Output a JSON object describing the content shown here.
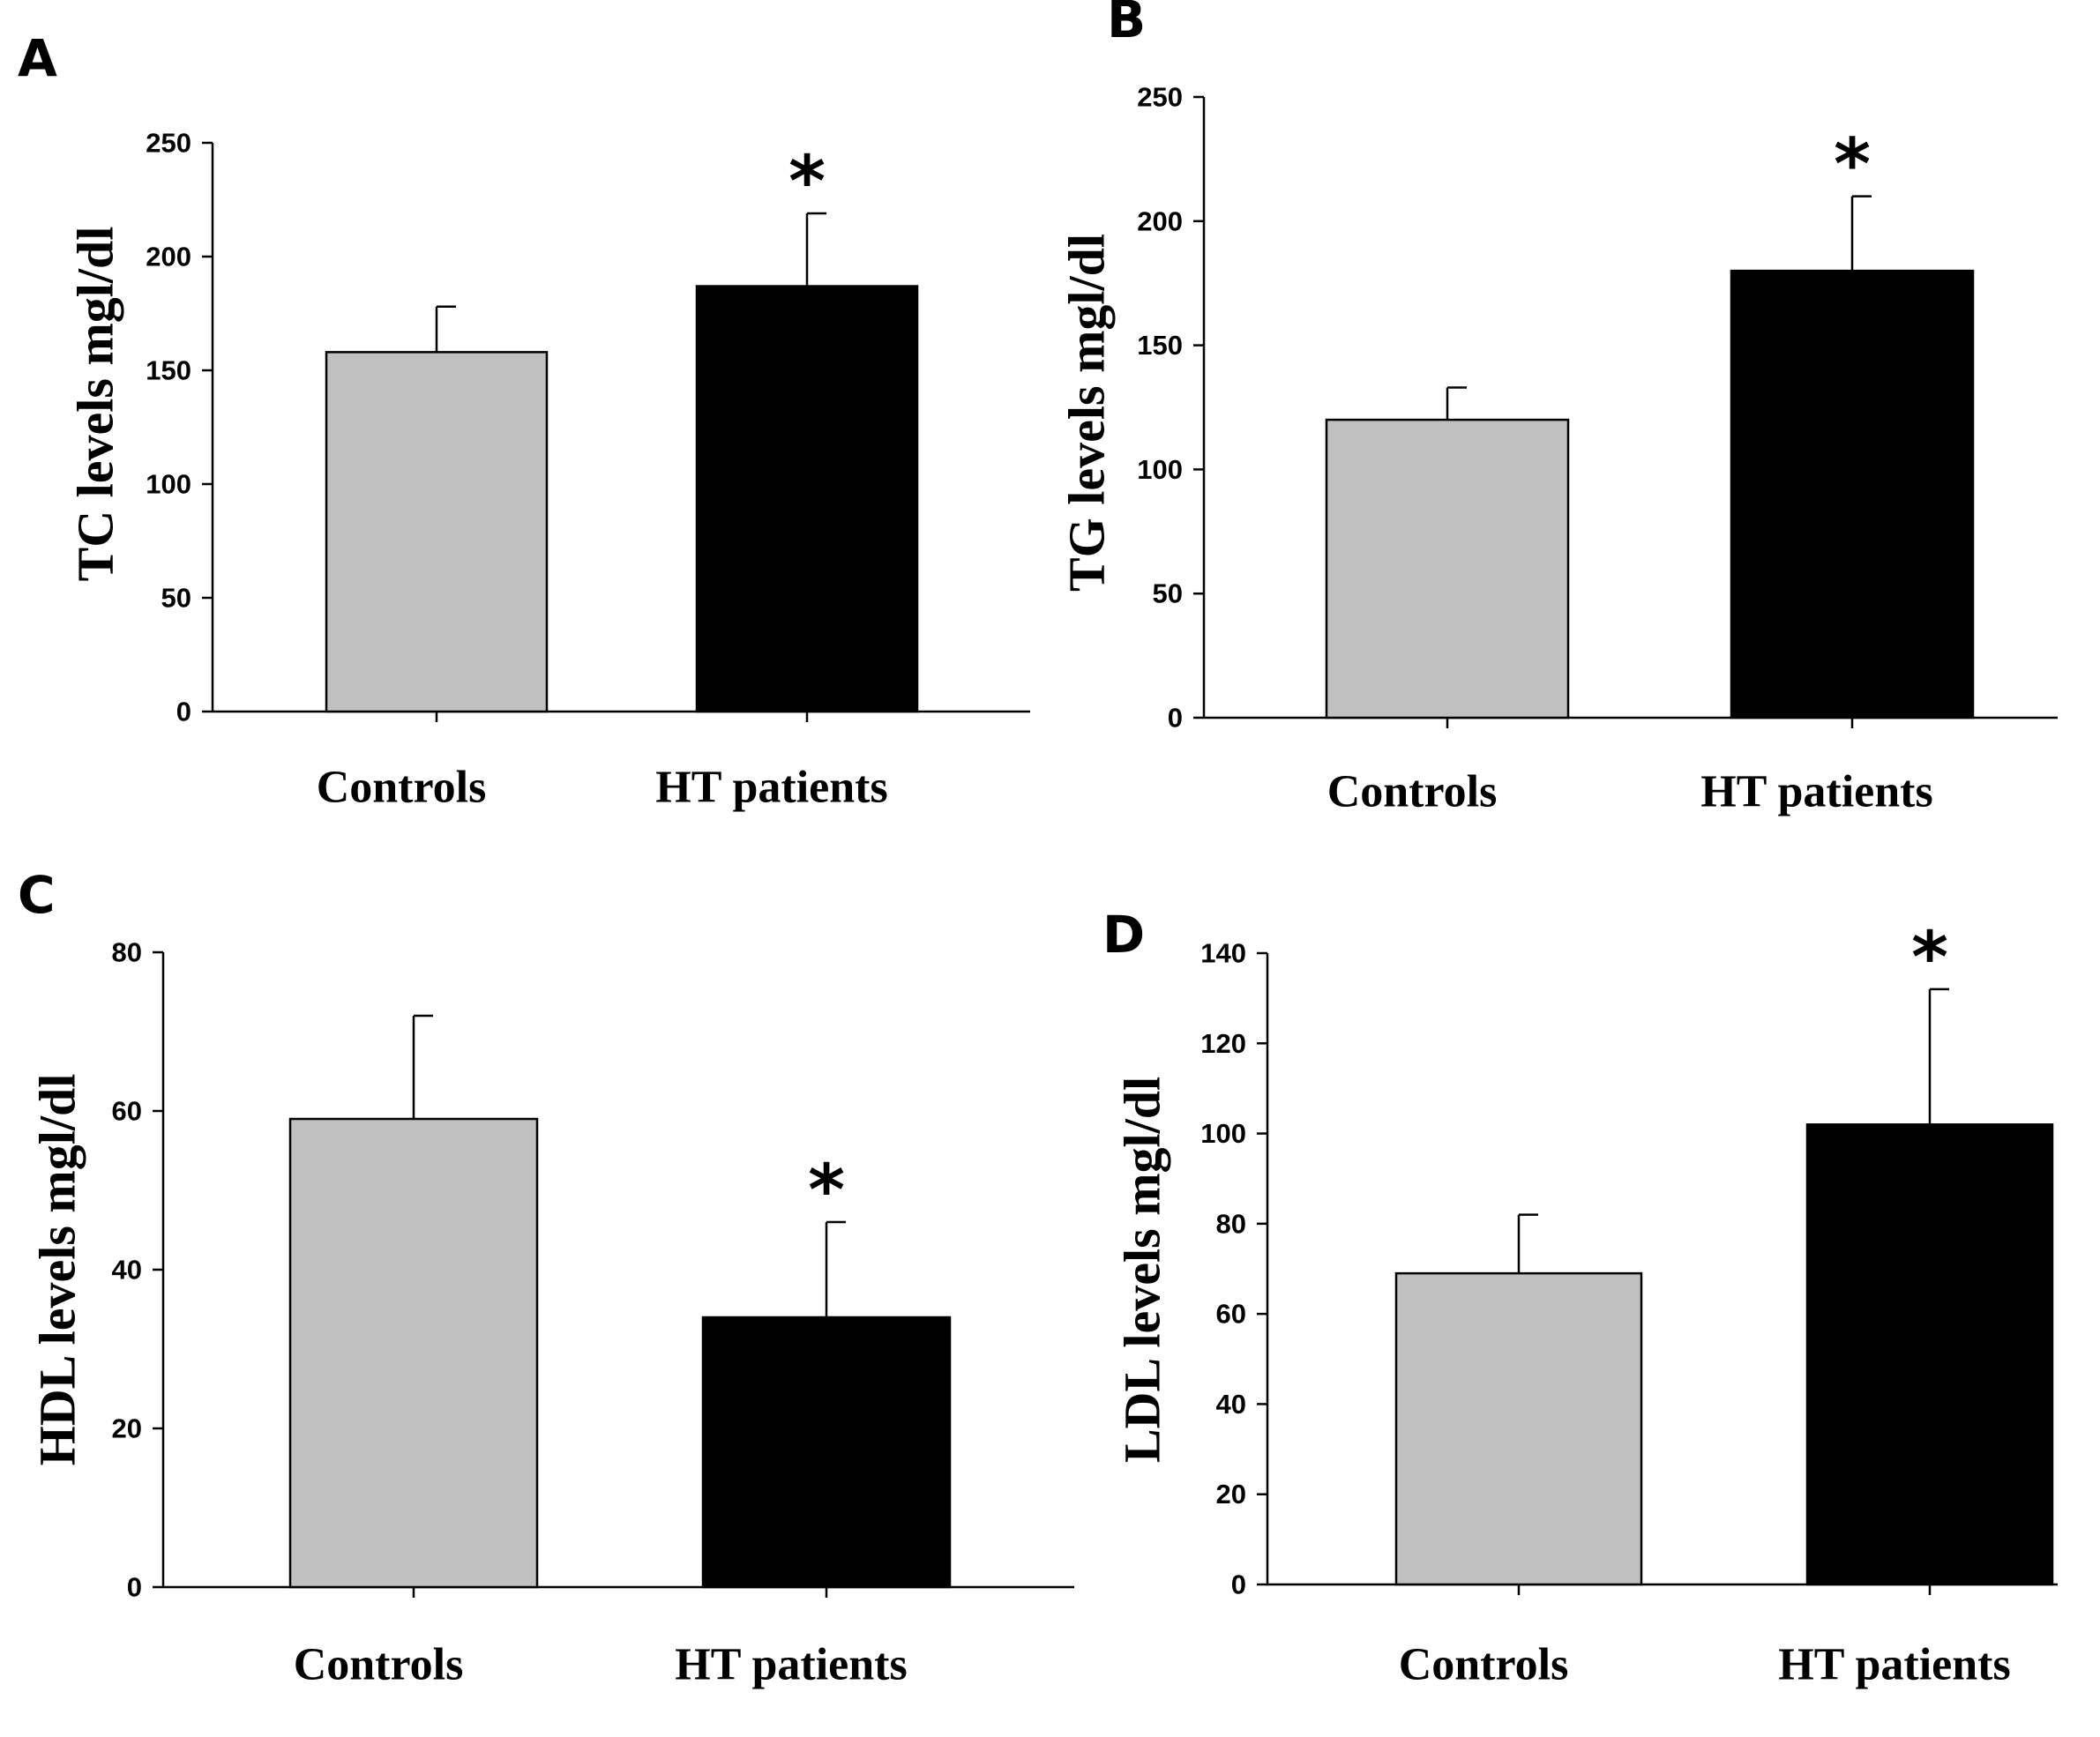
{
  "figure": {
    "colors": {
      "controls_bar": "#c0c0c0",
      "patients_bar": "#000000"
    }
  },
  "chart_data": [
    {
      "type": "bar",
      "panel": "A",
      "categories": [
        "Controls",
        "HT patients"
      ],
      "values": [
        158,
        187
      ],
      "errors": [
        20,
        32
      ],
      "significance": [
        "",
        "*"
      ],
      "ylabel": "TC levels mgl/dl",
      "ylim": [
        0,
        250
      ],
      "yticks": [
        0,
        50,
        100,
        150,
        200,
        250
      ]
    },
    {
      "type": "bar",
      "panel": "B",
      "categories": [
        "Controls",
        "HT patients"
      ],
      "values": [
        120,
        180
      ],
      "errors": [
        13,
        30
      ],
      "significance": [
        "",
        "*"
      ],
      "ylabel": "TG levels mgl/dl",
      "ylim": [
        0,
        250
      ],
      "yticks": [
        0,
        50,
        100,
        150,
        200,
        250
      ]
    },
    {
      "type": "bar",
      "panel": "C",
      "categories": [
        "Controls",
        "HT patients"
      ],
      "values": [
        59,
        34
      ],
      "errors": [
        13,
        12
      ],
      "significance": [
        "",
        "*"
      ],
      "ylabel": "HDL levels mgl/dl",
      "ylim": [
        0,
        80
      ],
      "yticks": [
        0,
        20,
        40,
        60,
        80
      ]
    },
    {
      "type": "bar",
      "panel": "D",
      "categories": [
        "Controls",
        "HT patients"
      ],
      "values": [
        69,
        102
      ],
      "errors": [
        13,
        30
      ],
      "significance": [
        "",
        "*"
      ],
      "ylabel": "LDL levels mgl/dl",
      "ylim": [
        0,
        140
      ],
      "yticks": [
        0,
        20,
        40,
        60,
        80,
        100,
        120,
        140
      ]
    }
  ]
}
